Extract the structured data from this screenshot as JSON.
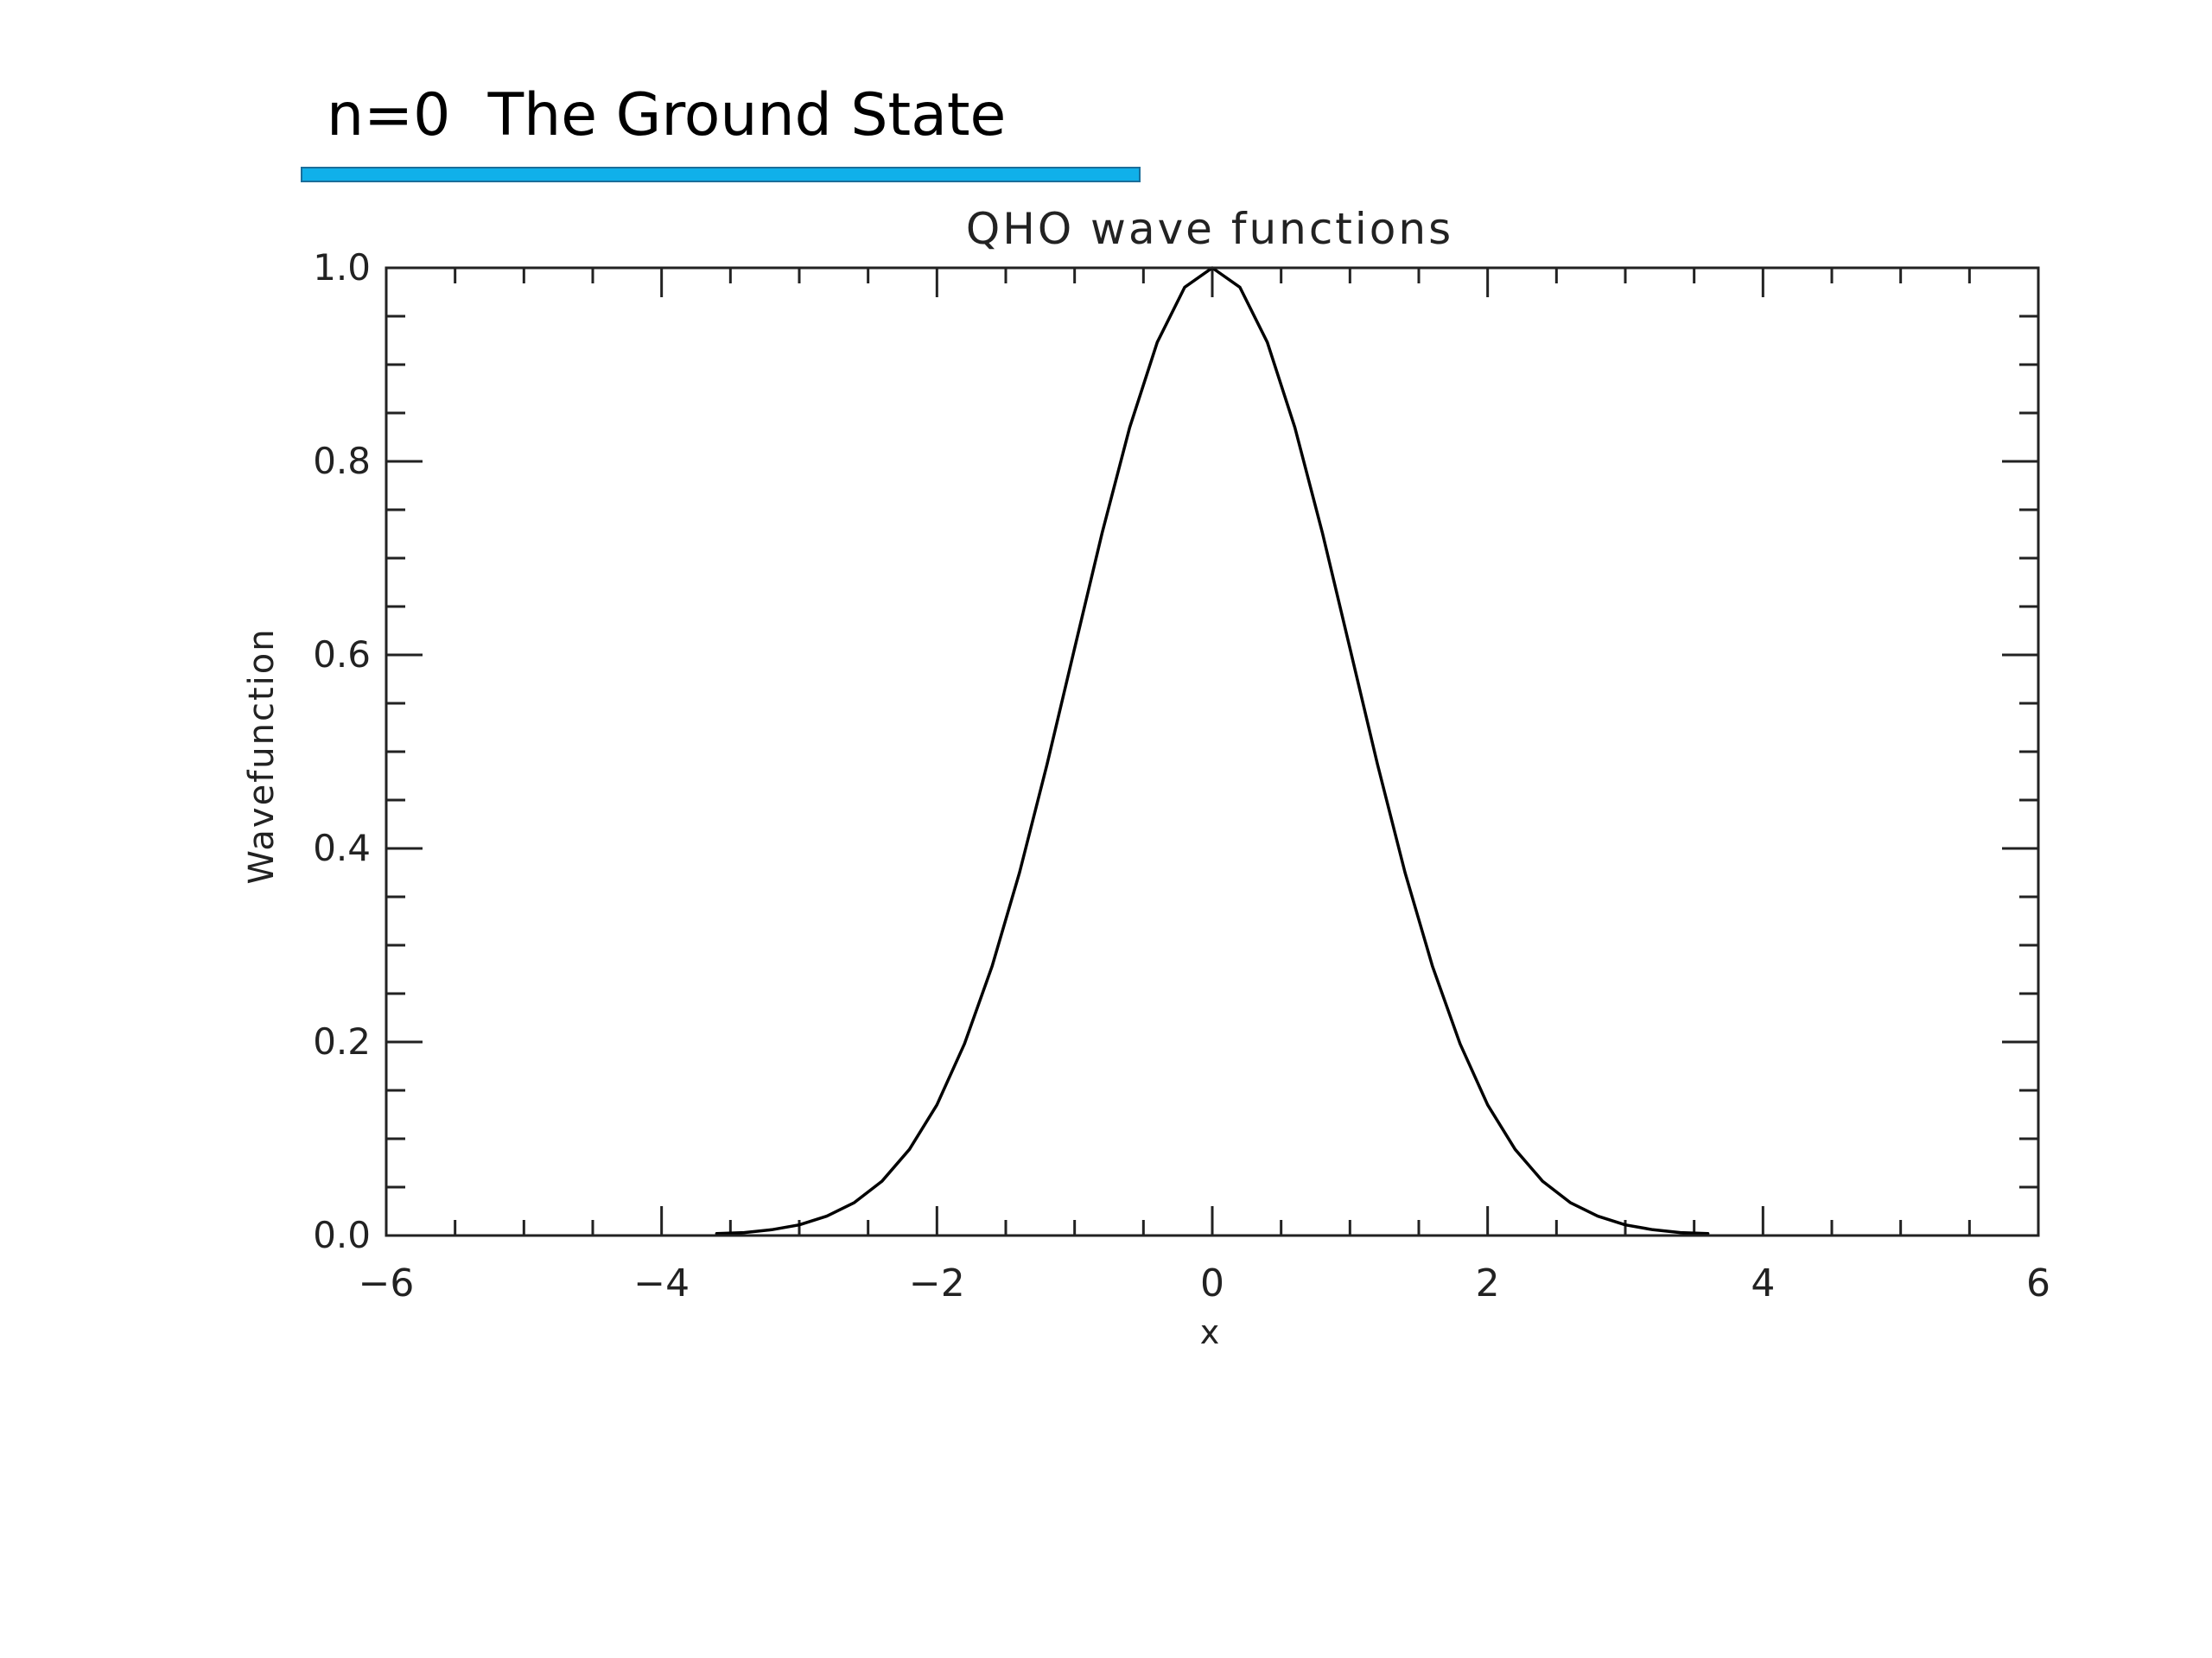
{
  "slide": {
    "heading": "n=0  The Ground State",
    "accent_color": "#10b0ea"
  },
  "chart_data": {
    "type": "line",
    "title": "QHO wave functions",
    "xlabel": "x",
    "ylabel": "Wavefunction",
    "xlim": [
      -6,
      6
    ],
    "ylim": [
      0,
      1
    ],
    "x_ticks": [
      "-6",
      "-4",
      "-2",
      "0",
      "2",
      "4",
      "6"
    ],
    "y_ticks": [
      "0.0",
      "0.2",
      "0.4",
      "0.6",
      "0.8",
      "1.0"
    ],
    "grid": false,
    "series": [
      {
        "x": [
          -3.6,
          -3.4,
          -3.2,
          -3.0,
          -2.8,
          -2.6,
          -2.4,
          -2.2,
          -2.0,
          -1.8,
          -1.6,
          -1.4,
          -1.2,
          -1.0,
          -0.8,
          -0.6,
          -0.4,
          -0.2,
          0.0,
          0.2,
          0.4,
          0.6,
          0.8,
          1.0,
          1.2,
          1.4,
          1.6,
          1.8,
          2.0,
          2.2,
          2.4,
          2.6,
          2.8,
          3.0,
          3.2,
          3.4,
          3.6
        ],
        "y": [
          0.002,
          0.003,
          0.006,
          0.011,
          0.02,
          0.034,
          0.056,
          0.089,
          0.135,
          0.198,
          0.278,
          0.375,
          0.487,
          0.607,
          0.726,
          0.835,
          0.923,
          0.98,
          1.0,
          0.98,
          0.923,
          0.835,
          0.726,
          0.607,
          0.487,
          0.375,
          0.278,
          0.198,
          0.135,
          0.089,
          0.056,
          0.034,
          0.02,
          0.011,
          0.006,
          0.003,
          0.002
        ],
        "color": "#000000"
      }
    ]
  }
}
